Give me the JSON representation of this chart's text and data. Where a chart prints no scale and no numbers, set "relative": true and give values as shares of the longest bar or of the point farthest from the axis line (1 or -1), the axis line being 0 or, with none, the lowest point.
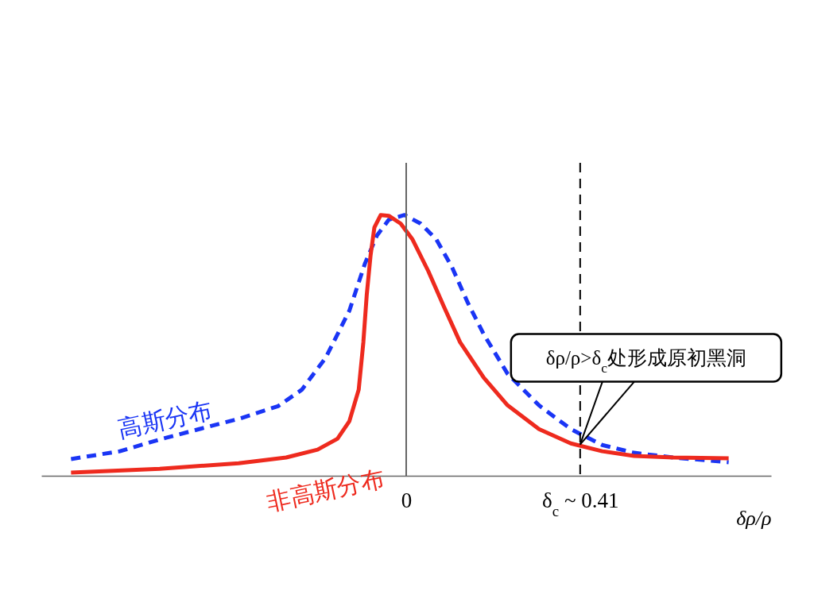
{
  "chart_data": {
    "type": "line",
    "relative": true,
    "xlabel": "δρ/ρ",
    "xlim": [
      -0.86,
      0.86
    ],
    "xticks": [
      0,
      {
        "value": 0.41,
        "label": "δ$_{c}$ ~ 0.41"
      }
    ],
    "ref_lines": [
      {
        "axis": "x",
        "value": 0,
        "color": "#666666",
        "line_style": "solid"
      },
      {
        "axis": "x",
        "value": 0.41,
        "color": "#000000",
        "line_style": "dashed"
      }
    ],
    "annotations": [
      {
        "text": "δρ/ρ>δ$_{c}$处形成原初黑洞",
        "x": 0.41,
        "y": 0.12
      }
    ],
    "series": [
      {
        "name": "高斯分布",
        "color": "#1a35f5",
        "line_style": "dashed",
        "x": [
          -0.79,
          -0.675,
          -0.581,
          -0.488,
          -0.395,
          -0.302,
          -0.246,
          -0.19,
          -0.134,
          -0.097,
          -0.069,
          -0.041,
          -0.004,
          0.034,
          0.071,
          0.108,
          0.145,
          0.183,
          0.239,
          0.313,
          0.388,
          0.462,
          0.537,
          0.63,
          0.76
        ],
        "values": [
          0.064,
          0.094,
          0.139,
          0.179,
          0.218,
          0.267,
          0.33,
          0.452,
          0.633,
          0.815,
          0.921,
          0.982,
          1,
          0.967,
          0.906,
          0.8,
          0.664,
          0.542,
          0.391,
          0.27,
          0.179,
          0.118,
          0.088,
          0.07,
          0.052
        ]
      },
      {
        "name": "非高斯分布",
        "color": "#ee2a1e",
        "line_style": "solid",
        "x": [
          -0.79,
          -0.581,
          -0.395,
          -0.283,
          -0.209,
          -0.162,
          -0.134,
          -0.112,
          -0.101,
          -0.093,
          -0.084,
          -0.075,
          -0.06,
          -0.041,
          -0.013,
          0.015,
          0.052,
          0.089,
          0.127,
          0.183,
          0.239,
          0.313,
          0.388,
          0.462,
          0.537,
          0.63,
          0.76
        ],
        "values": [
          0.012,
          0.027,
          0.048,
          0.07,
          0.1,
          0.142,
          0.209,
          0.33,
          0.512,
          0.694,
          0.845,
          0.952,
          1,
          0.997,
          0.967,
          0.906,
          0.785,
          0.648,
          0.512,
          0.376,
          0.27,
          0.179,
          0.124,
          0.094,
          0.076,
          0.07,
          0.067
        ]
      }
    ]
  }
}
